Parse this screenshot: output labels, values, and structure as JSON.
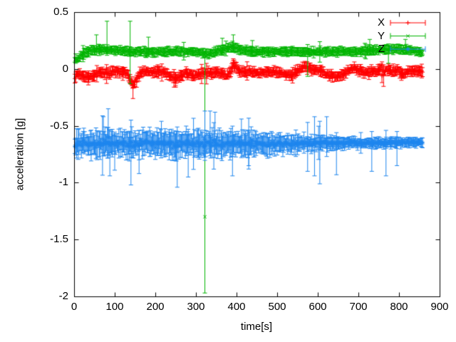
{
  "figure": {
    "background": "#ffffff",
    "axis_color": "#000000"
  },
  "chart_data": {
    "type": "scatter",
    "subtype": "errorbars",
    "title": "",
    "xlabel": "time[s]",
    "ylabel": "acceleration [g]",
    "xlim": [
      0,
      900
    ],
    "ylim": [
      -2,
      0.5
    ],
    "xticks": [
      0,
      100,
      200,
      300,
      400,
      500,
      600,
      700,
      800,
      900
    ],
    "xticklabels": [
      "0",
      "100",
      "200",
      "300",
      "400",
      "500",
      "600",
      "700",
      "800",
      "900"
    ],
    "yticks": [
      0.5,
      0,
      -0.5,
      -1,
      -1.5,
      -2
    ],
    "yticklabels": [
      "0.5",
      "0",
      "-0.5",
      "-1",
      "-1.5",
      "-2"
    ],
    "grid": false,
    "legend_position": "top-right-inside",
    "sampling": {
      "t_start": 2,
      "t_end": 858,
      "t_step": 2,
      "seed": 42
    },
    "series": [
      {
        "name": "X",
        "color": "#ff0000",
        "marker": "plus",
        "center": [
          [
            0,
            -0.11
          ],
          [
            6,
            -0.05
          ],
          [
            14,
            -0.04
          ],
          [
            22,
            -0.06
          ],
          [
            32,
            -0.075
          ],
          [
            45,
            -0.065
          ],
          [
            55,
            -0.04
          ],
          [
            65,
            -0.02
          ],
          [
            75,
            -0.04
          ],
          [
            85,
            -0.045
          ],
          [
            95,
            -0.02
          ],
          [
            103,
            -0.012
          ],
          [
            112,
            -0.025
          ],
          [
            122,
            -0.03
          ],
          [
            132,
            -0.05
          ],
          [
            140,
            -0.1
          ],
          [
            146,
            -0.15
          ],
          [
            153,
            -0.1
          ],
          [
            162,
            -0.04
          ],
          [
            172,
            -0.02
          ],
          [
            186,
            -0.027
          ],
          [
            200,
            -0.03
          ],
          [
            214,
            -0.025
          ],
          [
            228,
            -0.04
          ],
          [
            242,
            -0.075
          ],
          [
            252,
            -0.088
          ],
          [
            263,
            -0.06
          ],
          [
            273,
            -0.032
          ],
          [
            286,
            -0.05
          ],
          [
            296,
            -0.062
          ],
          [
            306,
            -0.045
          ],
          [
            316,
            -0.035
          ],
          [
            327,
            -0.03
          ],
          [
            341,
            -0.036
          ],
          [
            355,
            -0.025
          ],
          [
            366,
            -0.046
          ],
          [
            376,
            -0.06
          ],
          [
            386,
            -0.025
          ],
          [
            392,
            0.04
          ],
          [
            399,
            0.018
          ],
          [
            406,
            -0.015
          ],
          [
            420,
            -0.03
          ],
          [
            436,
            -0.022
          ],
          [
            452,
            -0.035
          ],
          [
            466,
            -0.03
          ],
          [
            480,
            -0.022
          ],
          [
            496,
            -0.027
          ],
          [
            510,
            -0.032
          ],
          [
            521,
            -0.05
          ],
          [
            533,
            -0.06
          ],
          [
            546,
            -0.035
          ],
          [
            556,
            -0.002
          ],
          [
            566,
            0.022
          ],
          [
            578,
            0.015
          ],
          [
            590,
            -0.006
          ],
          [
            601,
            -0.016
          ],
          [
            612,
            -0.022
          ],
          [
            623,
            -0.05
          ],
          [
            636,
            -0.062
          ],
          [
            650,
            -0.06
          ],
          [
            663,
            -0.05
          ],
          [
            673,
            -0.022
          ],
          [
            683,
            -0.002
          ],
          [
            696,
            -0.002
          ],
          [
            706,
            -0.012
          ],
          [
            716,
            -0.026
          ],
          [
            726,
            -0.03
          ],
          [
            736,
            -0.022
          ],
          [
            746,
            -0.014
          ],
          [
            753,
            0.0
          ],
          [
            757,
            0.02
          ],
          [
            762,
            -0.05
          ],
          [
            768,
            0.0
          ],
          [
            776,
            -0.012
          ],
          [
            786,
            -0.022
          ],
          [
            796,
            -0.016
          ],
          [
            806,
            -0.032
          ],
          [
            813,
            -0.04
          ],
          [
            821,
            -0.026
          ],
          [
            831,
            -0.016
          ],
          [
            842,
            -0.02
          ],
          [
            858,
            -0.018
          ]
        ],
        "noise_sd": [
          [
            0,
            0.016
          ],
          [
            140,
            0.02
          ],
          [
            400,
            0.016
          ],
          [
            745,
            0.02
          ],
          [
            790,
            0.024
          ],
          [
            800,
            0.015
          ],
          [
            858,
            0.012
          ]
        ],
        "err_base": 0.02,
        "err_var": 0.028,
        "err_scale": [
          [
            0,
            1
          ],
          [
            858,
            1
          ]
        ],
        "outliers": [
          [
            35,
            -0.09,
            0.05,
            0.05
          ],
          [
            120,
            -0.05,
            0.05,
            0.05
          ],
          [
            145,
            -0.16,
            0.06,
            0.1
          ],
          [
            250,
            -0.1,
            0.05,
            0.06
          ],
          [
            392,
            0.05,
            0.04,
            0.04
          ],
          [
            545,
            -0.01,
            0.04,
            0.04
          ],
          [
            758,
            -0.06,
            0.05,
            0.06
          ],
          [
            806,
            -0.05,
            0.05,
            0.05
          ]
        ]
      },
      {
        "name": "Y",
        "color": "#00b400",
        "marker": "cross",
        "center": [
          [
            0,
            0.09
          ],
          [
            7,
            0.068
          ],
          [
            13,
            0.105
          ],
          [
            22,
            0.135
          ],
          [
            35,
            0.155
          ],
          [
            50,
            0.168
          ],
          [
            70,
            0.172
          ],
          [
            90,
            0.168
          ],
          [
            110,
            0.162
          ],
          [
            130,
            0.156
          ],
          [
            155,
            0.15
          ],
          [
            180,
            0.15
          ],
          [
            205,
            0.15
          ],
          [
            230,
            0.154
          ],
          [
            255,
            0.158
          ],
          [
            275,
            0.155
          ],
          [
            295,
            0.15
          ],
          [
            315,
            0.142
          ],
          [
            330,
            0.132
          ],
          [
            345,
            0.146
          ],
          [
            360,
            0.168
          ],
          [
            375,
            0.178
          ],
          [
            388,
            0.196
          ],
          [
            396,
            0.19
          ],
          [
            404,
            0.178
          ],
          [
            418,
            0.165
          ],
          [
            434,
            0.158
          ],
          [
            452,
            0.152
          ],
          [
            475,
            0.15
          ],
          [
            500,
            0.15
          ],
          [
            525,
            0.154
          ],
          [
            550,
            0.15
          ],
          [
            580,
            0.149
          ],
          [
            610,
            0.15
          ],
          [
            640,
            0.15
          ],
          [
            670,
            0.151
          ],
          [
            695,
            0.154
          ],
          [
            715,
            0.158
          ],
          [
            735,
            0.163
          ],
          [
            755,
            0.168
          ],
          [
            775,
            0.173
          ],
          [
            795,
            0.178
          ],
          [
            810,
            0.172
          ],
          [
            825,
            0.165
          ],
          [
            840,
            0.158
          ],
          [
            850,
            0.148
          ],
          [
            858,
            0.14
          ]
        ],
        "noise_sd": [
          [
            0,
            0.02
          ],
          [
            30,
            0.015
          ],
          [
            858,
            0.012
          ]
        ],
        "err_base": 0.018,
        "err_var": 0.025,
        "err_scale": [
          [
            0,
            1
          ],
          [
            858,
            1
          ]
        ],
        "outliers": [
          [
            55,
            0.17,
            0.13,
            0.05
          ],
          [
            81,
            0.18,
            0.24,
            0.06
          ],
          [
            138,
            0.15,
            0.27,
            0.28
          ],
          [
            183,
            0.16,
            0.12,
            0.05
          ],
          [
            322,
            -1.3,
            1.41,
            0.67
          ],
          [
            365,
            0.17,
            0.1,
            0.05
          ],
          [
            392,
            0.2,
            0.1,
            0.05
          ],
          [
            439,
            0.16,
            0.09,
            0.05
          ],
          [
            575,
            0.155,
            0.06,
            0.22
          ],
          [
            605,
            0.15,
            0.09,
            0.09
          ],
          [
            728,
            0.16,
            0.1,
            0.04
          ],
          [
            774,
            0.17,
            0.05,
            0.12
          ],
          [
            816,
            0.18,
            0.08,
            0.04
          ]
        ]
      },
      {
        "name": "Z",
        "color": "#1e86ee",
        "marker": "star",
        "center": [
          [
            0,
            -0.672
          ],
          [
            10,
            -0.66
          ],
          [
            25,
            -0.655
          ],
          [
            50,
            -0.658
          ],
          [
            80,
            -0.655
          ],
          [
            120,
            -0.66
          ],
          [
            160,
            -0.657
          ],
          [
            200,
            -0.655
          ],
          [
            240,
            -0.66
          ],
          [
            280,
            -0.657
          ],
          [
            320,
            -0.652
          ],
          [
            360,
            -0.656
          ],
          [
            400,
            -0.66
          ],
          [
            440,
            -0.656
          ],
          [
            480,
            -0.66
          ],
          [
            520,
            -0.657
          ],
          [
            560,
            -0.655
          ],
          [
            600,
            -0.652
          ],
          [
            640,
            -0.654
          ],
          [
            680,
            -0.65
          ],
          [
            720,
            -0.65
          ],
          [
            760,
            -0.65
          ],
          [
            800,
            -0.648
          ],
          [
            830,
            -0.646
          ],
          [
            858,
            -0.644
          ]
        ],
        "noise_sd": [
          [
            0,
            0.025
          ],
          [
            40,
            0.032
          ],
          [
            100,
            0.035
          ],
          [
            200,
            0.035
          ],
          [
            300,
            0.034
          ],
          [
            380,
            0.032
          ],
          [
            450,
            0.028
          ],
          [
            520,
            0.024
          ],
          [
            600,
            0.02
          ],
          [
            680,
            0.016
          ],
          [
            760,
            0.014
          ],
          [
            858,
            0.012
          ]
        ],
        "err_base": 0.045,
        "err_var": 0.09,
        "err_scale": [
          [
            0,
            1
          ],
          [
            400,
            1
          ],
          [
            500,
            0.75
          ],
          [
            600,
            0.55
          ],
          [
            700,
            0.4
          ],
          [
            858,
            0.35
          ]
        ],
        "outliers": [
          [
            72,
            -0.62,
            0.2,
            0.12
          ],
          [
            84,
            -0.6,
            0.25,
            0.15
          ],
          [
            88,
            -0.66,
            0.12,
            0.28
          ],
          [
            100,
            -0.67,
            0.1,
            0.22
          ],
          [
            140,
            -0.65,
            0.2,
            0.37
          ],
          [
            160,
            -0.66,
            0.12,
            0.26
          ],
          [
            215,
            -0.64,
            0.18,
            0.12
          ],
          [
            254,
            -0.66,
            0.15,
            0.38
          ],
          [
            281,
            -0.65,
            0.12,
            0.3
          ],
          [
            322,
            -0.62,
            0.25,
            0.1
          ],
          [
            335,
            -0.6,
            0.23,
            0.12
          ],
          [
            347,
            -0.63,
            0.25,
            0.15
          ],
          [
            390,
            -0.66,
            0.1,
            0.28
          ],
          [
            412,
            -0.64,
            0.2,
            0.14
          ],
          [
            430,
            -0.66,
            0.12,
            0.22
          ],
          [
            575,
            -0.65,
            0.18,
            0.25
          ],
          [
            592,
            -0.64,
            0.22,
            0.3
          ],
          [
            605,
            -0.66,
            0.2,
            0.35
          ],
          [
            622,
            -0.65,
            0.23,
            0.12
          ],
          [
            646,
            -0.66,
            0.1,
            0.27
          ],
          [
            733,
            -0.65,
            0.1,
            0.25
          ],
          [
            768,
            -0.66,
            0.12,
            0.28
          ],
          [
            795,
            -0.65,
            0.1,
            0.2
          ]
        ]
      }
    ],
    "legend": {
      "entries": [
        {
          "label": "X"
        },
        {
          "label": "Y"
        },
        {
          "label": "Z"
        }
      ]
    }
  }
}
